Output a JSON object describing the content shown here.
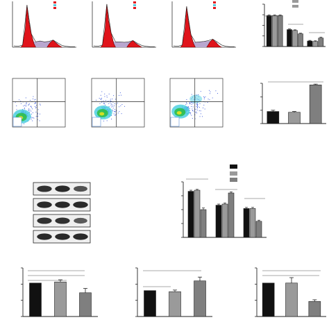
{
  "figure": {
    "colors": {
      "black": "#111111",
      "gray": "#9a9a9a",
      "dark_gray": "#7f7f7f",
      "histogram_fill": "#e0141b",
      "histogram_shaded": "#b9a7cf",
      "flow_blue": "#1b3fd6",
      "flow_green": "#2fbf4a",
      "flow_cyan": "#4fd0e0",
      "legend_swatch_red": "#e0141b",
      "legend_swatch_cyan": "#55c8dc"
    },
    "icons": [
      "cell-cycle-histogram-icon",
      "flow-cytometry-density-icon",
      "western-blot-icon"
    ]
  },
  "chart_data": [
    {
      "type": "area",
      "panel": "cell-cycle-histogram-1",
      "x": [
        0,
        5,
        10,
        15,
        20,
        25,
        30,
        35,
        40,
        45,
        50,
        55,
        60,
        65,
        70
      ],
      "y": [
        3,
        2,
        5,
        95,
        30,
        12,
        14,
        12,
        13,
        16,
        10,
        4,
        2,
        1,
        1
      ]
    },
    {
      "type": "area",
      "panel": "cell-cycle-histogram-2",
      "x": [
        0,
        5,
        10,
        15,
        20,
        25,
        30,
        35,
        40,
        45,
        50,
        55,
        60,
        65,
        70
      ],
      "y": [
        3,
        2,
        5,
        97,
        32,
        12,
        12,
        11,
        12,
        15,
        9,
        4,
        2,
        1,
        1
      ]
    },
    {
      "type": "area",
      "panel": "cell-cycle-histogram-3",
      "x": [
        0,
        5,
        10,
        15,
        20,
        25,
        30,
        35,
        40,
        45,
        50,
        55,
        60,
        65,
        70
      ],
      "y": [
        3,
        2,
        5,
        92,
        28,
        11,
        12,
        13,
        15,
        18,
        12,
        5,
        2,
        1,
        1
      ]
    },
    {
      "type": "bar",
      "panel": "cell-cycle-bars",
      "categories": [
        "",
        "",
        ""
      ],
      "series": [
        {
          "values": [
            73,
            40,
            13
          ],
          "errors": [
            1.5,
            1.5,
            1.5
          ]
        },
        {
          "values": [
            73,
            38,
            12
          ],
          "errors": [
            1.5,
            1.5,
            1.5
          ]
        },
        {
          "values": [
            73,
            30,
            20
          ],
          "errors": [
            1.5,
            1.5,
            2
          ]
        }
      ],
      "ylim": [
        0,
        100
      ]
    },
    {
      "type": "scatter",
      "panel": "flow-density-1",
      "quadrant_x": 0.47,
      "quadrant_y": 0.52,
      "density_center": [
        0.18,
        0.22
      ]
    },
    {
      "type": "scatter",
      "panel": "flow-density-2",
      "quadrant_x": 0.47,
      "quadrant_y": 0.52,
      "density_center": [
        0.22,
        0.3
      ]
    },
    {
      "type": "scatter",
      "panel": "flow-density-3",
      "quadrant_x": 0.47,
      "quadrant_y": 0.52,
      "density_center": [
        0.2,
        0.32
      ]
    },
    {
      "type": "bar",
      "panel": "apoptosis-bars",
      "categories": [
        "",
        "",
        ""
      ],
      "values": [
        30,
        28,
        96
      ],
      "errors": [
        3,
        2,
        2
      ],
      "ylim": [
        0,
        100
      ]
    },
    {
      "type": "table",
      "panel": "western-blot",
      "rows": 4,
      "lanes": 3,
      "band_intensity": [
        [
          0.85,
          0.9,
          0.6
        ],
        [
          0.9,
          0.9,
          0.9
        ],
        [
          0.85,
          0.85,
          0.55
        ],
        [
          0.9,
          0.9,
          0.9
        ]
      ]
    },
    {
      "type": "bar",
      "panel": "protein-bars",
      "categories": [
        "",
        "",
        ""
      ],
      "series": [
        {
          "values": [
            83,
            58,
            52
          ],
          "errors": [
            2,
            2,
            2
          ]
        },
        {
          "values": [
            85,
            60,
            52
          ],
          "errors": [
            1.5,
            2,
            2
          ]
        },
        {
          "values": [
            50,
            80,
            29
          ],
          "errors": [
            3,
            2,
            2
          ]
        }
      ],
      "ylim": [
        0,
        100
      ]
    },
    {
      "type": "bar",
      "panel": "bottom-bars-1",
      "categories": [
        "",
        "",
        ""
      ],
      "values": [
        62,
        64,
        44
      ],
      "errors": [
        0,
        4,
        8
      ],
      "ylim": [
        0,
        90
      ]
    },
    {
      "type": "bar",
      "panel": "bottom-bars-2",
      "categories": [
        "",
        "",
        ""
      ],
      "values": [
        48,
        46,
        66
      ],
      "errors": [
        0,
        3,
        7
      ],
      "ylim": [
        0,
        90
      ]
    },
    {
      "type": "bar",
      "panel": "bottom-bars-3",
      "categories": [
        "",
        "",
        ""
      ],
      "values": [
        62,
        62,
        28
      ],
      "errors": [
        0,
        10,
        3
      ],
      "ylim": [
        0,
        90
      ]
    }
  ]
}
